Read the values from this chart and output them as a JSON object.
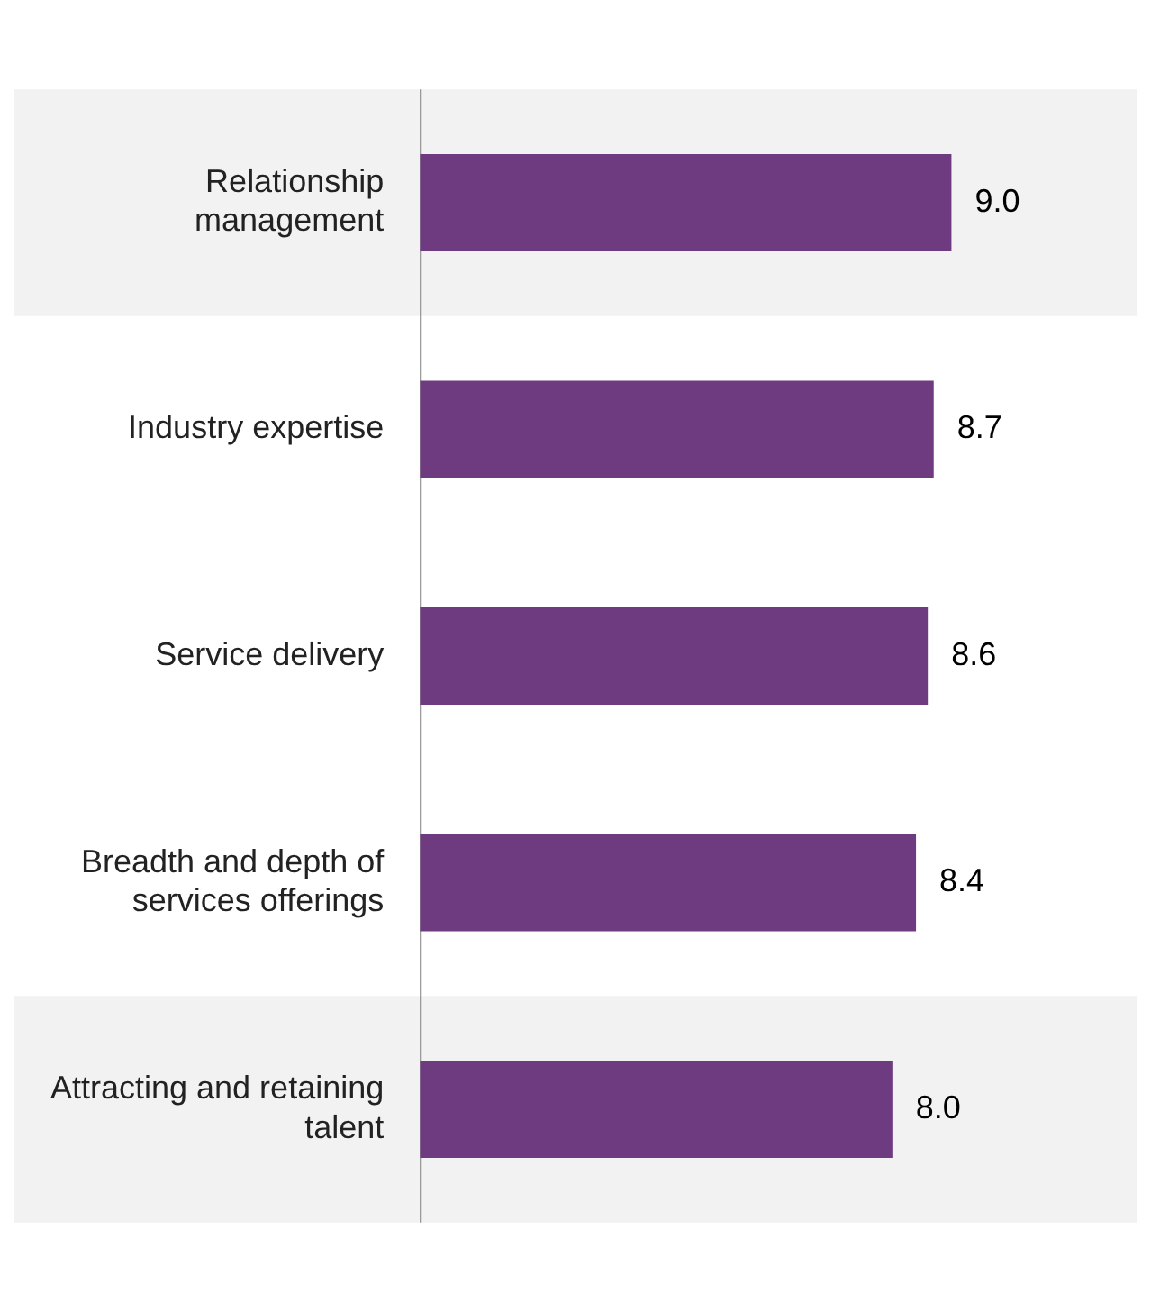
{
  "chart_data": {
    "type": "bar",
    "orientation": "horizontal",
    "categories": [
      "Relationship management",
      "Industry expertise",
      "Service delivery",
      "Breadth and depth of services offerings",
      "Attracting and retaining talent"
    ],
    "values": [
      9.0,
      8.7,
      8.6,
      8.4,
      8.0
    ],
    "color": "#6f3b80",
    "tick_labels": "y",
    "value_labels": [
      "9.0",
      "8.7",
      "8.6",
      "8.4",
      "8.0"
    ],
    "grid": false,
    "legend": false,
    "bands": [
      {
        "axis": "y",
        "from": "Relationship management",
        "to": "Relationship management",
        "color": "#f2f2f2"
      },
      {
        "axis": "y",
        "from": "Attracting and retaining talent",
        "to": "Attracting and retaining talent",
        "color": "#f2f2f2"
      }
    ]
  }
}
